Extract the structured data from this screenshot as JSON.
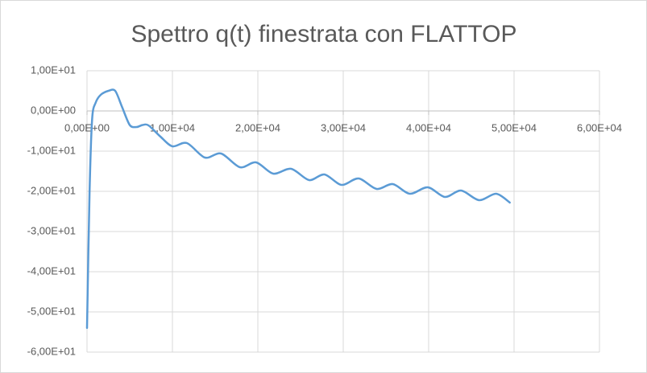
{
  "chart_data": {
    "type": "line",
    "title": "Spettro q(t) finestrata con FLATTOP",
    "x": [
      0,
      300,
      600,
      1000,
      1600,
      2500,
      3300,
      4100,
      5000,
      5800,
      6500,
      7200,
      8600,
      10000,
      11700,
      13800,
      15700,
      17900,
      19800,
      21800,
      23900,
      26000,
      27800,
      29800,
      31800,
      33900,
      35800,
      37800,
      39900,
      41900,
      43800,
      45900,
      47900,
      49500
    ],
    "series": [
      {
        "color": "#5b9bd5",
        "values": [
          -54,
          -20,
          -2,
          2,
          4,
          5,
          5,
          1,
          -3.5,
          -4,
          -3.5,
          -3.6,
          -6.4,
          -8.8,
          -8,
          -11.6,
          -10.6,
          -14,
          -12.8,
          -15.6,
          -14.4,
          -17.2,
          -15.8,
          -18.4,
          -16.8,
          -19.4,
          -18.2,
          -20.6,
          -19,
          -21.4,
          -19.8,
          -22.2,
          -20.6,
          -22.8
        ]
      }
    ],
    "xlim": [
      0,
      60000
    ],
    "xticks": [
      {
        "value": 0,
        "label": "0,00E+00"
      },
      {
        "value": 10000,
        "label": "1,00E+04"
      },
      {
        "value": 20000,
        "label": "2,00E+04"
      },
      {
        "value": 30000,
        "label": "3,00E+04"
      },
      {
        "value": 40000,
        "label": "4,00E+04"
      },
      {
        "value": 50000,
        "label": "5,00E+04"
      },
      {
        "value": 60000,
        "label": "6,00E+04"
      }
    ],
    "ylim": [
      -60,
      10
    ],
    "yticks": [
      {
        "value": 10,
        "label": "1,00E+01"
      },
      {
        "value": 0,
        "label": "0,00E+00"
      },
      {
        "value": -10,
        "label": "-1,00E+01"
      },
      {
        "value": -20,
        "label": "-2,00E+01"
      },
      {
        "value": -30,
        "label": "-3,00E+01"
      },
      {
        "value": -40,
        "label": "-4,00E+01"
      },
      {
        "value": -50,
        "label": "-5,00E+01"
      },
      {
        "value": -60,
        "label": "-6,00E+01"
      }
    ],
    "grid": true
  }
}
